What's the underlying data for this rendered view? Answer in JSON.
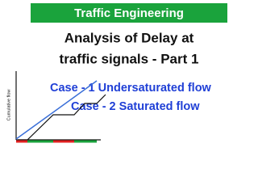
{
  "header": {
    "title": "Traffic Engineering"
  },
  "title": {
    "lines": [
      "Analysis of Delay at",
      "traffic signals - Part 1"
    ]
  },
  "cases": [
    "Case - 1 Undersaturated flow",
    "Case - 2 Saturated flow"
  ],
  "diagram": {
    "y_label": "Cumulative flow"
  }
}
